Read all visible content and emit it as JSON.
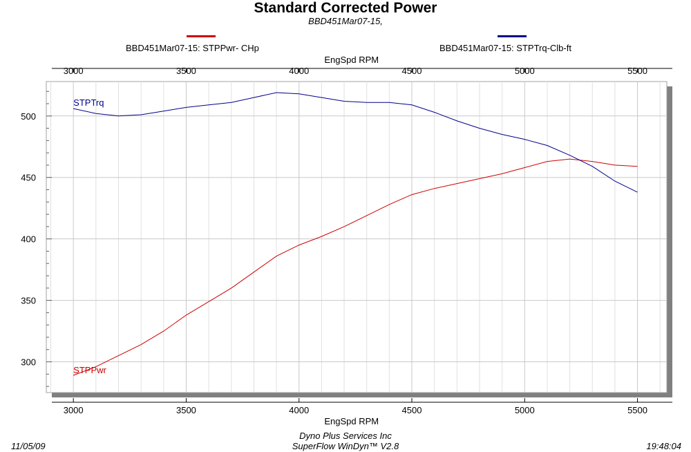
{
  "chart_data": {
    "type": "line",
    "title": "Standard Corrected Power",
    "subtitle": "BBD451Mar07-15,",
    "xlabel": "EngSpd  RPM",
    "x_ticks": [
      3000,
      3500,
      4000,
      4500,
      5000,
      5500
    ],
    "y_ticks": [
      300,
      350,
      400,
      450,
      500
    ],
    "xlim": [
      2880,
      5630
    ],
    "ylim": [
      275,
      528
    ],
    "grid": true,
    "legend_position": "top",
    "series": [
      {
        "name": "BBD451Mar07-15: STPPwr- CHp",
        "label": "STPPwr",
        "color": "#cc0000",
        "x": [
          3000,
          3100,
          3200,
          3300,
          3400,
          3500,
          3600,
          3700,
          3800,
          3900,
          4000,
          4100,
          4200,
          4300,
          4400,
          4500,
          4600,
          4700,
          4800,
          4900,
          5000,
          5100,
          5200,
          5300,
          5400,
          5500
        ],
        "y": [
          289,
          296,
          305,
          314,
          325,
          338,
          349,
          360,
          373,
          386,
          395,
          402,
          410,
          419,
          428,
          436,
          441,
          445,
          449,
          453,
          458,
          463,
          465,
          463,
          460,
          459
        ]
      },
      {
        "name": "BBD451Mar07-15: STPTrq-Clb-ft",
        "label": "STPTrq",
        "color": "#00008b",
        "x": [
          3000,
          3100,
          3200,
          3300,
          3400,
          3500,
          3600,
          3700,
          3800,
          3900,
          4000,
          4100,
          4200,
          4300,
          4400,
          4500,
          4600,
          4700,
          4800,
          4900,
          5000,
          5100,
          5200,
          5300,
          5400,
          5500
        ],
        "y": [
          506,
          502,
          500,
          501,
          504,
          507,
          509,
          511,
          515,
          519,
          518,
          515,
          512,
          511,
          511,
          509,
          503,
          496,
          490,
          485,
          481,
          476,
          468,
          459,
          447,
          438
        ]
      }
    ]
  },
  "footer": {
    "date": "11/05/09",
    "company": "Dyno Plus Services Inc",
    "software": "SuperFlow WinDyn™ V2.8",
    "time": "19:48:04"
  }
}
